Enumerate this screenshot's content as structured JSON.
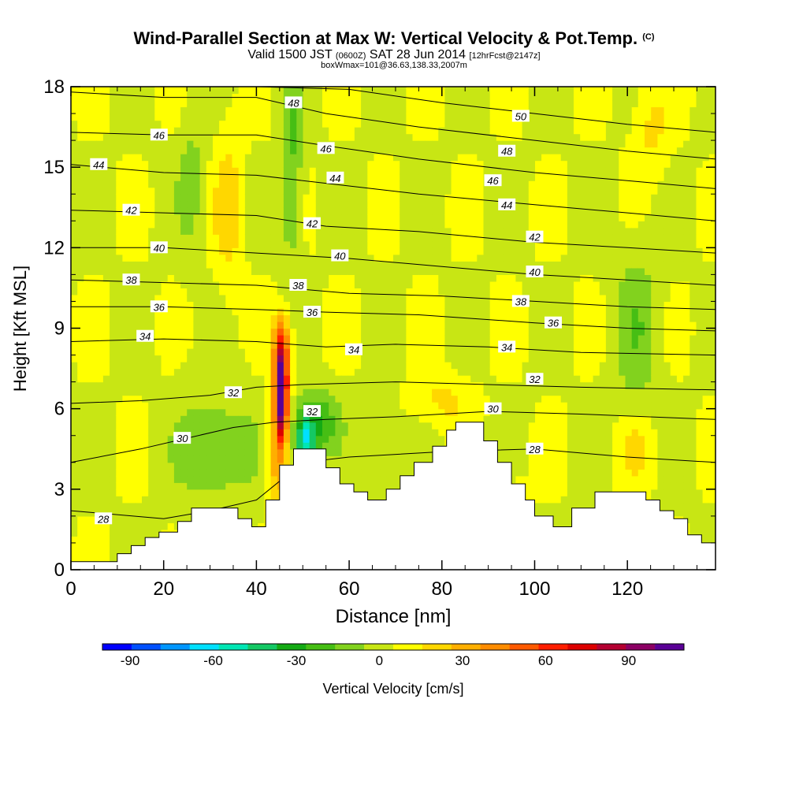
{
  "header": {
    "title": "Wind-Parallel Section at Max W: Vertical Velocity & Pot.Temp.",
    "title_units": "(C)",
    "valid_prefix": "Valid 1500 JST",
    "valid_utc": "(0600Z)",
    "valid_date": "SAT 28 Jun 2014",
    "valid_fcst": "[12hrFcst@2147z]",
    "subtitle": "boxWmax=101@36.63,138.33,2007m"
  },
  "chart_data": {
    "type": "heatmap",
    "xlabel": "Distance [nm]",
    "ylabel": "Height [Kft MSL]",
    "xlim": [
      0,
      139
    ],
    "ylim": [
      0,
      18
    ],
    "x_ticks": [
      0,
      20,
      40,
      60,
      80,
      100,
      120
    ],
    "y_ticks": [
      0,
      3,
      6,
      9,
      12,
      15,
      18
    ],
    "colorbar": {
      "label": "Vertical Velocity [cm/s]",
      "ticks": [
        -90,
        -60,
        -30,
        0,
        30,
        60,
        90
      ],
      "range": [
        -100,
        110
      ],
      "colors": [
        "#0000ff",
        "#0050ff",
        "#0096ff",
        "#00e0ff",
        "#00e6b4",
        "#14c864",
        "#14aa14",
        "#46be14",
        "#82d21e",
        "#c8e614",
        "#ffff00",
        "#ffd700",
        "#ffaf00",
        "#ff8c00",
        "#ff5a00",
        "#ff1e00",
        "#dc0000",
        "#b40032",
        "#8c0064",
        "#5a0096"
      ]
    },
    "terrain_kft": [
      [
        0,
        0.3
      ],
      [
        10,
        0.3
      ],
      [
        10,
        0.6
      ],
      [
        13,
        0.6
      ],
      [
        13,
        0.9
      ],
      [
        16,
        0.9
      ],
      [
        16,
        1.2
      ],
      [
        19,
        1.2
      ],
      [
        19,
        1.4
      ],
      [
        23,
        1.4
      ],
      [
        23,
        1.8
      ],
      [
        26,
        1.8
      ],
      [
        26,
        2.3
      ],
      [
        36,
        2.3
      ],
      [
        36,
        1.9
      ],
      [
        39,
        1.9
      ],
      [
        39,
        1.6
      ],
      [
        42,
        1.6
      ],
      [
        42,
        2.6
      ],
      [
        45,
        2.6
      ],
      [
        45,
        3.9
      ],
      [
        48,
        3.9
      ],
      [
        48,
        4.5
      ],
      [
        55,
        4.5
      ],
      [
        55,
        3.8
      ],
      [
        58,
        3.8
      ],
      [
        58,
        3.2
      ],
      [
        61,
        3.2
      ],
      [
        61,
        2.9
      ],
      [
        64,
        2.9
      ],
      [
        64,
        2.6
      ],
      [
        68,
        2.6
      ],
      [
        68,
        3.0
      ],
      [
        71,
        3.0
      ],
      [
        71,
        3.5
      ],
      [
        74,
        3.5
      ],
      [
        74,
        4.0
      ],
      [
        78,
        4.0
      ],
      [
        78,
        4.6
      ],
      [
        81,
        4.6
      ],
      [
        81,
        5.2
      ],
      [
        83,
        5.2
      ],
      [
        83,
        5.5
      ],
      [
        89,
        5.5
      ],
      [
        89,
        4.8
      ],
      [
        92,
        4.8
      ],
      [
        92,
        4.0
      ],
      [
        95,
        4.0
      ],
      [
        95,
        3.2
      ],
      [
        98,
        3.2
      ],
      [
        98,
        2.6
      ],
      [
        100,
        2.6
      ],
      [
        100,
        2.0
      ],
      [
        104,
        2.0
      ],
      [
        104,
        1.6
      ],
      [
        108,
        1.6
      ],
      [
        108,
        2.3
      ],
      [
        113,
        2.3
      ],
      [
        113,
        2.9
      ],
      [
        124,
        2.9
      ],
      [
        124,
        2.6
      ],
      [
        127,
        2.6
      ],
      [
        127,
        2.2
      ],
      [
        130,
        2.2
      ],
      [
        130,
        1.9
      ],
      [
        133,
        1.9
      ],
      [
        133,
        1.3
      ],
      [
        136,
        1.3
      ],
      [
        136,
        1.0
      ],
      [
        139,
        1.0
      ]
    ],
    "series": [
      {
        "name": "28",
        "values": [
          [
            0,
            2.2
          ],
          [
            20,
            1.9
          ],
          [
            30,
            2.2
          ],
          [
            40,
            2.6
          ],
          [
            50,
            4.0
          ],
          [
            60,
            4.2
          ],
          [
            80,
            4.4
          ],
          [
            100,
            4.5
          ],
          [
            120,
            4.2
          ],
          [
            139,
            4.0
          ]
        ],
        "label_x": 7,
        "label_y": 1.9
      },
      {
        "name": "30",
        "values": [
          [
            0,
            4.0
          ],
          [
            15,
            4.5
          ],
          [
            25,
            4.9
          ],
          [
            35,
            5.3
          ],
          [
            44,
            5.5
          ],
          [
            55,
            5.6
          ],
          [
            70,
            5.7
          ],
          [
            90,
            5.9
          ],
          [
            110,
            5.8
          ],
          [
            139,
            5.6
          ]
        ],
        "label_x": 24,
        "label_y": 4.9
      },
      {
        "name": "32",
        "values": [
          [
            0,
            6.2
          ],
          [
            15,
            6.3
          ],
          [
            30,
            6.5
          ],
          [
            40,
            6.8
          ],
          [
            50,
            6.9
          ],
          [
            70,
            7.0
          ],
          [
            90,
            6.9
          ],
          [
            110,
            6.8
          ],
          [
            139,
            6.7
          ]
        ],
        "label_x": 35,
        "label_y": 6.6
      },
      {
        "name": "34",
        "values": [
          [
            0,
            8.5
          ],
          [
            20,
            8.6
          ],
          [
            40,
            8.5
          ],
          [
            55,
            8.3
          ],
          [
            70,
            8.4
          ],
          [
            90,
            8.3
          ],
          [
            110,
            8.1
          ],
          [
            139,
            8.0
          ]
        ],
        "label_x": 16,
        "label_y": 8.7
      },
      {
        "name": "36",
        "values": [
          [
            0,
            9.8
          ],
          [
            20,
            9.8
          ],
          [
            40,
            9.7
          ],
          [
            55,
            9.6
          ],
          [
            75,
            9.5
          ],
          [
            100,
            9.2
          ],
          [
            120,
            9.0
          ],
          [
            139,
            8.9
          ]
        ],
        "label_x": 19,
        "label_y": 9.8
      },
      {
        "name": "38",
        "values": [
          [
            0,
            10.8
          ],
          [
            20,
            10.7
          ],
          [
            40,
            10.6
          ],
          [
            60,
            10.3
          ],
          [
            80,
            10.2
          ],
          [
            100,
            10.0
          ],
          [
            120,
            9.8
          ],
          [
            139,
            9.7
          ]
        ],
        "label_x": 13,
        "label_y": 10.8
      },
      {
        "name": "40",
        "values": [
          [
            0,
            12.0
          ],
          [
            20,
            12.0
          ],
          [
            40,
            11.8
          ],
          [
            60,
            11.6
          ],
          [
            80,
            11.3
          ],
          [
            100,
            11.0
          ],
          [
            120,
            10.8
          ],
          [
            139,
            10.6
          ]
        ],
        "label_x": 19,
        "label_y": 12.0
      },
      {
        "name": "42",
        "values": [
          [
            0,
            13.4
          ],
          [
            20,
            13.3
          ],
          [
            40,
            13.2
          ],
          [
            55,
            12.8
          ],
          [
            75,
            12.6
          ],
          [
            100,
            12.2
          ],
          [
            120,
            12.0
          ],
          [
            139,
            11.8
          ]
        ],
        "label_x": 13,
        "label_y": 13.4
      },
      {
        "name": "44",
        "values": [
          [
            0,
            15.1
          ],
          [
            20,
            14.8
          ],
          [
            40,
            14.7
          ],
          [
            55,
            14.4
          ],
          [
            75,
            14.0
          ],
          [
            100,
            13.6
          ],
          [
            120,
            13.3
          ],
          [
            139,
            13.0
          ]
        ],
        "label_x": 6,
        "label_y": 15.1
      },
      {
        "name": "46",
        "values": [
          [
            0,
            16.3
          ],
          [
            20,
            16.2
          ],
          [
            40,
            16.2
          ],
          [
            55,
            15.8
          ],
          [
            75,
            15.3
          ],
          [
            100,
            14.8
          ],
          [
            120,
            14.5
          ],
          [
            139,
            14.2
          ]
        ],
        "label_x": 19,
        "label_y": 16.2
      },
      {
        "name": "48",
        "values": [
          [
            0,
            17.8
          ],
          [
            20,
            17.6
          ],
          [
            40,
            17.6
          ],
          [
            55,
            17.0
          ],
          [
            75,
            16.5
          ],
          [
            100,
            16.0
          ],
          [
            120,
            15.6
          ],
          [
            139,
            15.3
          ]
        ],
        "label_x": 48,
        "label_y": 17.4
      },
      {
        "name": "50",
        "values": [
          [
            40,
            18.0
          ],
          [
            60,
            17.9
          ],
          [
            80,
            17.4
          ],
          [
            100,
            17.0
          ],
          [
            120,
            16.6
          ],
          [
            139,
            16.3
          ]
        ],
        "label_x": 97,
        "label_y": 16.9
      }
    ],
    "extra_labels": [
      {
        "text": "46",
        "x": 55,
        "y": 15.7
      },
      {
        "text": "44",
        "x": 57,
        "y": 14.6
      },
      {
        "text": "42",
        "x": 52,
        "y": 12.9
      },
      {
        "text": "40",
        "x": 58,
        "y": 11.7
      },
      {
        "text": "38",
        "x": 49,
        "y": 10.6
      },
      {
        "text": "36",
        "x": 52,
        "y": 9.6
      },
      {
        "text": "34",
        "x": 61,
        "y": 8.2
      },
      {
        "text": "32",
        "x": 52,
        "y": 5.9
      },
      {
        "text": "48",
        "x": 94,
        "y": 15.6
      },
      {
        "text": "46",
        "x": 91,
        "y": 14.5
      },
      {
        "text": "44",
        "x": 94,
        "y": 13.6
      },
      {
        "text": "42",
        "x": 100,
        "y": 12.4
      },
      {
        "text": "40",
        "x": 100,
        "y": 11.1
      },
      {
        "text": "38",
        "x": 97,
        "y": 10.0
      },
      {
        "text": "36",
        "x": 104,
        "y": 9.2
      },
      {
        "text": "34",
        "x": 94,
        "y": 8.3
      },
      {
        "text": "32",
        "x": 100,
        "y": 7.1
      },
      {
        "text": "30",
        "x": 91,
        "y": 6.0
      },
      {
        "text": "28",
        "x": 100,
        "y": 4.5
      }
    ]
  }
}
